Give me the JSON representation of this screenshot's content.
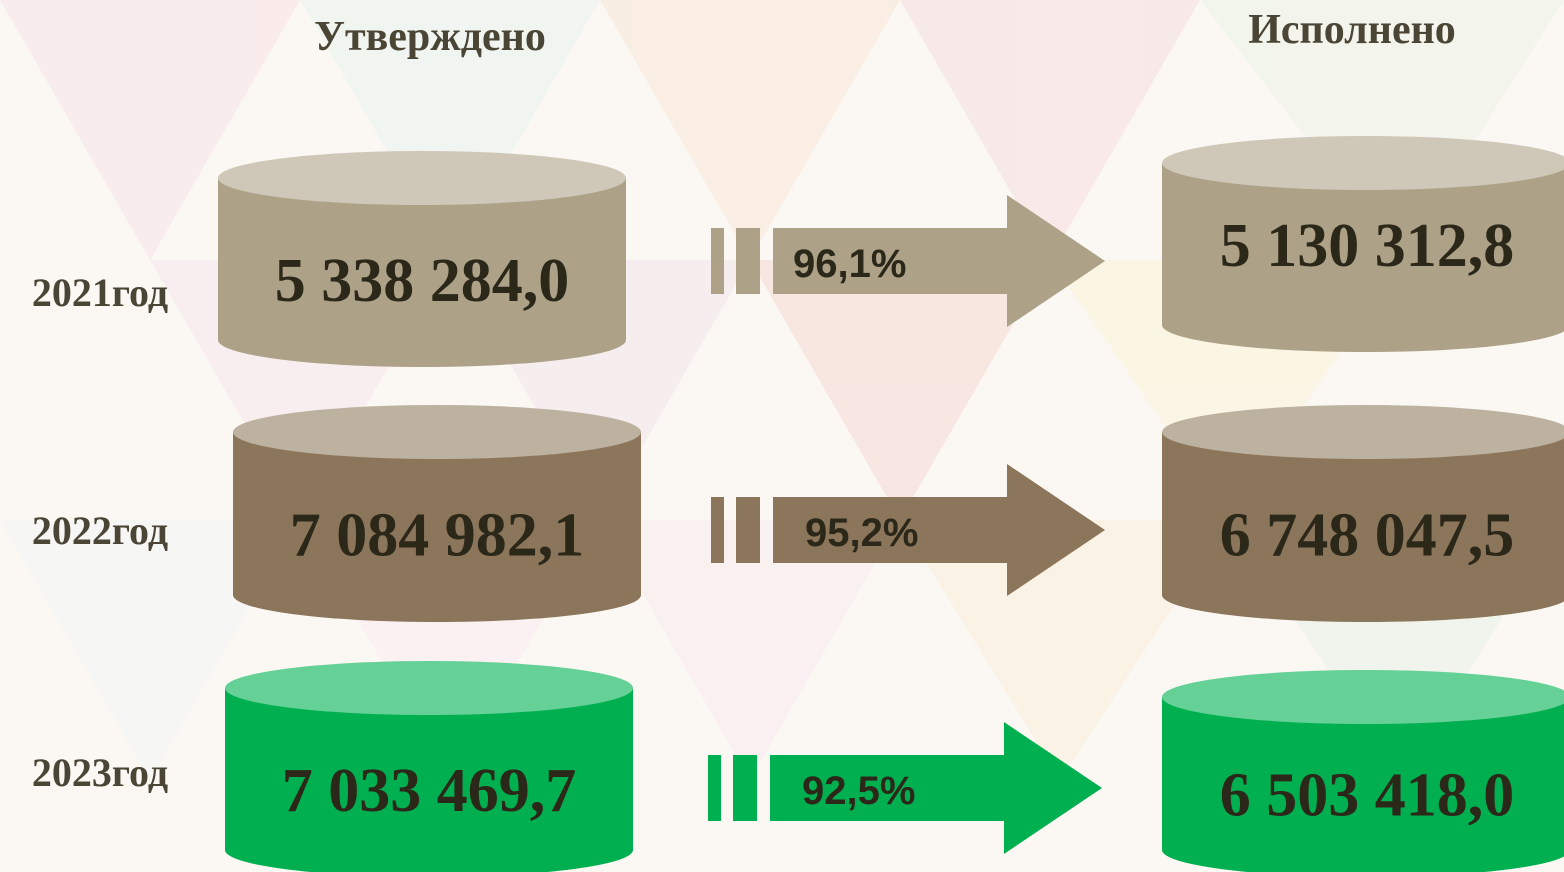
{
  "headers": {
    "approved": "Утверждено",
    "executed": "Исполнено"
  },
  "rows": [
    {
      "year": "2021год",
      "approved": "5 338 284,0",
      "percent": "96,1%",
      "executed": "5 130 312,8"
    },
    {
      "year": "2022год",
      "approved": "7 084 982,1",
      "percent": "95,2%",
      "executed": "6 748 047,5"
    },
    {
      "year": "2023год",
      "approved": "7 033 469,7",
      "percent": "92,5%",
      "executed": "6 503 418,0"
    }
  ]
}
